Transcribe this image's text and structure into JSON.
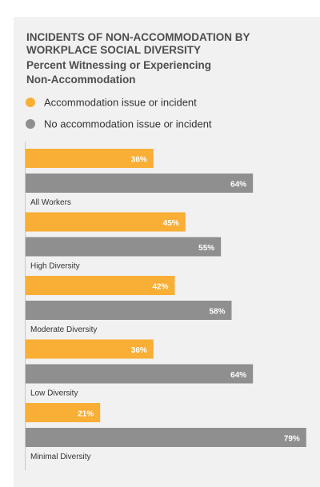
{
  "chart_data": {
    "type": "bar",
    "orientation": "horizontal",
    "title": "INCIDENTS OF NON-ACCOMMODATION BY WORKPLACE SOCIAL DIVERSITY",
    "subtitle": "Percent Witnessing or Experiencing Non-Accommodation",
    "categories": [
      "All Workers",
      "High Diversity",
      "Moderate Diversity",
      "Low Diversity",
      "Minimal Diversity"
    ],
    "series": [
      {
        "name": "Accommodation issue or incident",
        "color": "#f9ae35",
        "values": [
          36,
          45,
          42,
          36,
          21
        ],
        "labels": [
          "36%",
          "45%",
          "42%",
          "36%",
          "21%"
        ]
      },
      {
        "name": "No accommodation issue or incident",
        "color": "#8f8f8f",
        "values": [
          64,
          55,
          58,
          64,
          79
        ],
        "labels": [
          "64%",
          "55%",
          "58%",
          "64%",
          "79%"
        ]
      }
    ],
    "xlim": [
      0,
      100
    ],
    "legend_position": "top-left",
    "grid": false
  }
}
